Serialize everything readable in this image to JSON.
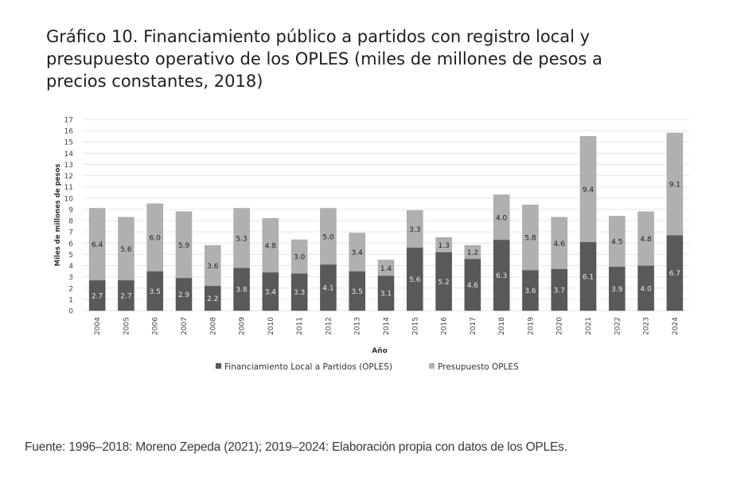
{
  "title": "Gráfico 10. Financiamiento público a partidos con registro local y presupuesto operativo de los OPLES (miles de millones de pesos a precios constantes, 2018)",
  "source": "Fuente: 1996–2018: Moreno Zepeda (2021); 2019–2024: Elaboración propia con datos de los OPLEs.",
  "chart_data": {
    "type": "bar",
    "stacked": true,
    "title": "Gráfico 10. Financiamiento público a partidos con registro local y presupuesto operativo de los OPLES (miles de millones de pesos a precios constantes, 2018)",
    "xlabel": "Año",
    "ylabel": "Miles de millones de pesos",
    "ylim": [
      0,
      17
    ],
    "yticks": [
      0,
      1,
      2,
      3,
      4,
      5,
      6,
      7,
      8,
      9,
      10,
      11,
      12,
      13,
      14,
      15,
      16,
      17
    ],
    "grid": true,
    "legend_position": "bottom",
    "categories": [
      "2004",
      "2005",
      "2006",
      "2007",
      "2008",
      "2009",
      "2010",
      "2011",
      "2012",
      "2013",
      "2014",
      "2015",
      "2016",
      "2017",
      "2018",
      "2019",
      "2020",
      "2021",
      "2022",
      "2023",
      "2024"
    ],
    "series": [
      {
        "name": "Financiamiento Local a Partidos (OPLES)",
        "color": "#595959",
        "values": [
          2.7,
          2.7,
          3.5,
          2.9,
          2.2,
          3.8,
          3.4,
          3.3,
          4.1,
          3.5,
          3.1,
          5.6,
          5.2,
          4.6,
          6.3,
          3.6,
          3.7,
          6.1,
          3.9,
          4.0,
          6.7
        ]
      },
      {
        "name": "Presupuesto OPLES",
        "color": "#b0b0b0",
        "values": [
          6.4,
          5.6,
          6.0,
          5.9,
          3.6,
          5.3,
          4.8,
          3.0,
          5.0,
          3.4,
          1.4,
          3.3,
          1.3,
          1.2,
          4.0,
          5.8,
          4.6,
          9.4,
          4.5,
          4.8,
          9.1
        ]
      }
    ]
  }
}
